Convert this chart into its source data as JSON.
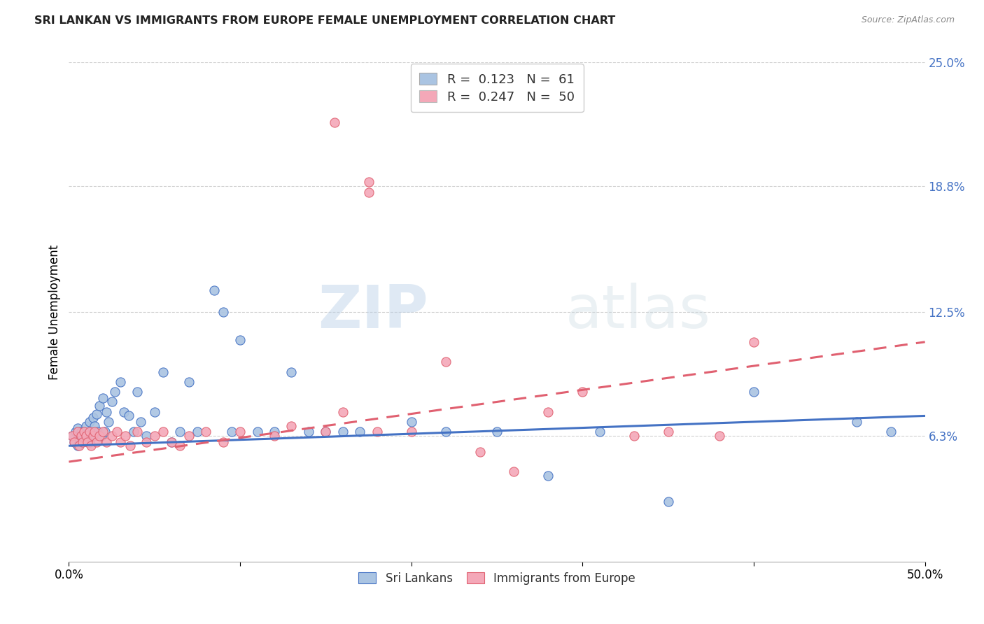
{
  "title": "SRI LANKAN VS IMMIGRANTS FROM EUROPE FEMALE UNEMPLOYMENT CORRELATION CHART",
  "source": "Source: ZipAtlas.com",
  "ylabel": "Female Unemployment",
  "watermark_zip": "ZIP",
  "watermark_atlas": "atlas",
  "xmin": 0.0,
  "xmax": 0.5,
  "ymin": 0.0,
  "ymax": 0.25,
  "yticks": [
    0.063,
    0.125,
    0.188,
    0.25
  ],
  "ytick_labels": [
    "6.3%",
    "12.5%",
    "18.8%",
    "25.0%"
  ],
  "xticks": [
    0.0,
    0.1,
    0.2,
    0.3,
    0.4,
    0.5
  ],
  "xtick_labels": [
    "0.0%",
    "",
    "",
    "",
    "",
    "50.0%"
  ],
  "sri_lankans_color": "#aac4e2",
  "immigrants_color": "#f4a8b8",
  "trend_sri_color": "#4472c4",
  "trend_imm_color": "#e06070",
  "sl_R": 0.123,
  "sl_N": 61,
  "imm_R": 0.247,
  "imm_N": 50,
  "sl_trend_x0": 0.0,
  "sl_trend_y0": 0.058,
  "sl_trend_x1": 0.5,
  "sl_trend_y1": 0.073,
  "imm_trend_x0": 0.0,
  "imm_trend_y0": 0.05,
  "imm_trend_x1": 0.5,
  "imm_trend_y1": 0.11,
  "sl_x": [
    0.002,
    0.003,
    0.004,
    0.005,
    0.005,
    0.006,
    0.007,
    0.007,
    0.008,
    0.009,
    0.01,
    0.01,
    0.012,
    0.012,
    0.013,
    0.014,
    0.015,
    0.015,
    0.016,
    0.017,
    0.018,
    0.019,
    0.02,
    0.021,
    0.022,
    0.023,
    0.025,
    0.027,
    0.03,
    0.032,
    0.035,
    0.038,
    0.04,
    0.042,
    0.045,
    0.05,
    0.055,
    0.06,
    0.065,
    0.07,
    0.075,
    0.085,
    0.09,
    0.095,
    0.1,
    0.11,
    0.12,
    0.13,
    0.14,
    0.15,
    0.16,
    0.17,
    0.2,
    0.22,
    0.25,
    0.28,
    0.31,
    0.35,
    0.4,
    0.46,
    0.48
  ],
  "sl_y": [
    0.063,
    0.06,
    0.065,
    0.058,
    0.067,
    0.062,
    0.06,
    0.065,
    0.063,
    0.065,
    0.068,
    0.062,
    0.07,
    0.06,
    0.065,
    0.072,
    0.068,
    0.063,
    0.074,
    0.065,
    0.078,
    0.063,
    0.082,
    0.065,
    0.075,
    0.07,
    0.08,
    0.085,
    0.09,
    0.075,
    0.073,
    0.065,
    0.085,
    0.07,
    0.063,
    0.075,
    0.095,
    0.06,
    0.065,
    0.09,
    0.065,
    0.136,
    0.125,
    0.065,
    0.111,
    0.065,
    0.065,
    0.095,
    0.065,
    0.065,
    0.065,
    0.065,
    0.07,
    0.065,
    0.065,
    0.043,
    0.065,
    0.03,
    0.085,
    0.07,
    0.065
  ],
  "imm_x": [
    0.002,
    0.003,
    0.005,
    0.006,
    0.007,
    0.008,
    0.009,
    0.01,
    0.011,
    0.012,
    0.013,
    0.014,
    0.015,
    0.016,
    0.018,
    0.02,
    0.022,
    0.025,
    0.028,
    0.03,
    0.033,
    0.036,
    0.04,
    0.045,
    0.05,
    0.055,
    0.06,
    0.065,
    0.07,
    0.08,
    0.09,
    0.1,
    0.12,
    0.13,
    0.15,
    0.16,
    0.18,
    0.2,
    0.22,
    0.24,
    0.26,
    0.28,
    0.3,
    0.33,
    0.35,
    0.38,
    0.4,
    0.155,
    0.175,
    0.175
  ],
  "imm_y": [
    0.063,
    0.06,
    0.065,
    0.058,
    0.063,
    0.06,
    0.065,
    0.063,
    0.06,
    0.065,
    0.058,
    0.063,
    0.065,
    0.06,
    0.063,
    0.065,
    0.06,
    0.063,
    0.065,
    0.06,
    0.063,
    0.058,
    0.065,
    0.06,
    0.063,
    0.065,
    0.06,
    0.058,
    0.063,
    0.065,
    0.06,
    0.065,
    0.063,
    0.068,
    0.065,
    0.075,
    0.065,
    0.065,
    0.1,
    0.055,
    0.045,
    0.075,
    0.085,
    0.063,
    0.065,
    0.063,
    0.11,
    0.22,
    0.19,
    0.185
  ]
}
